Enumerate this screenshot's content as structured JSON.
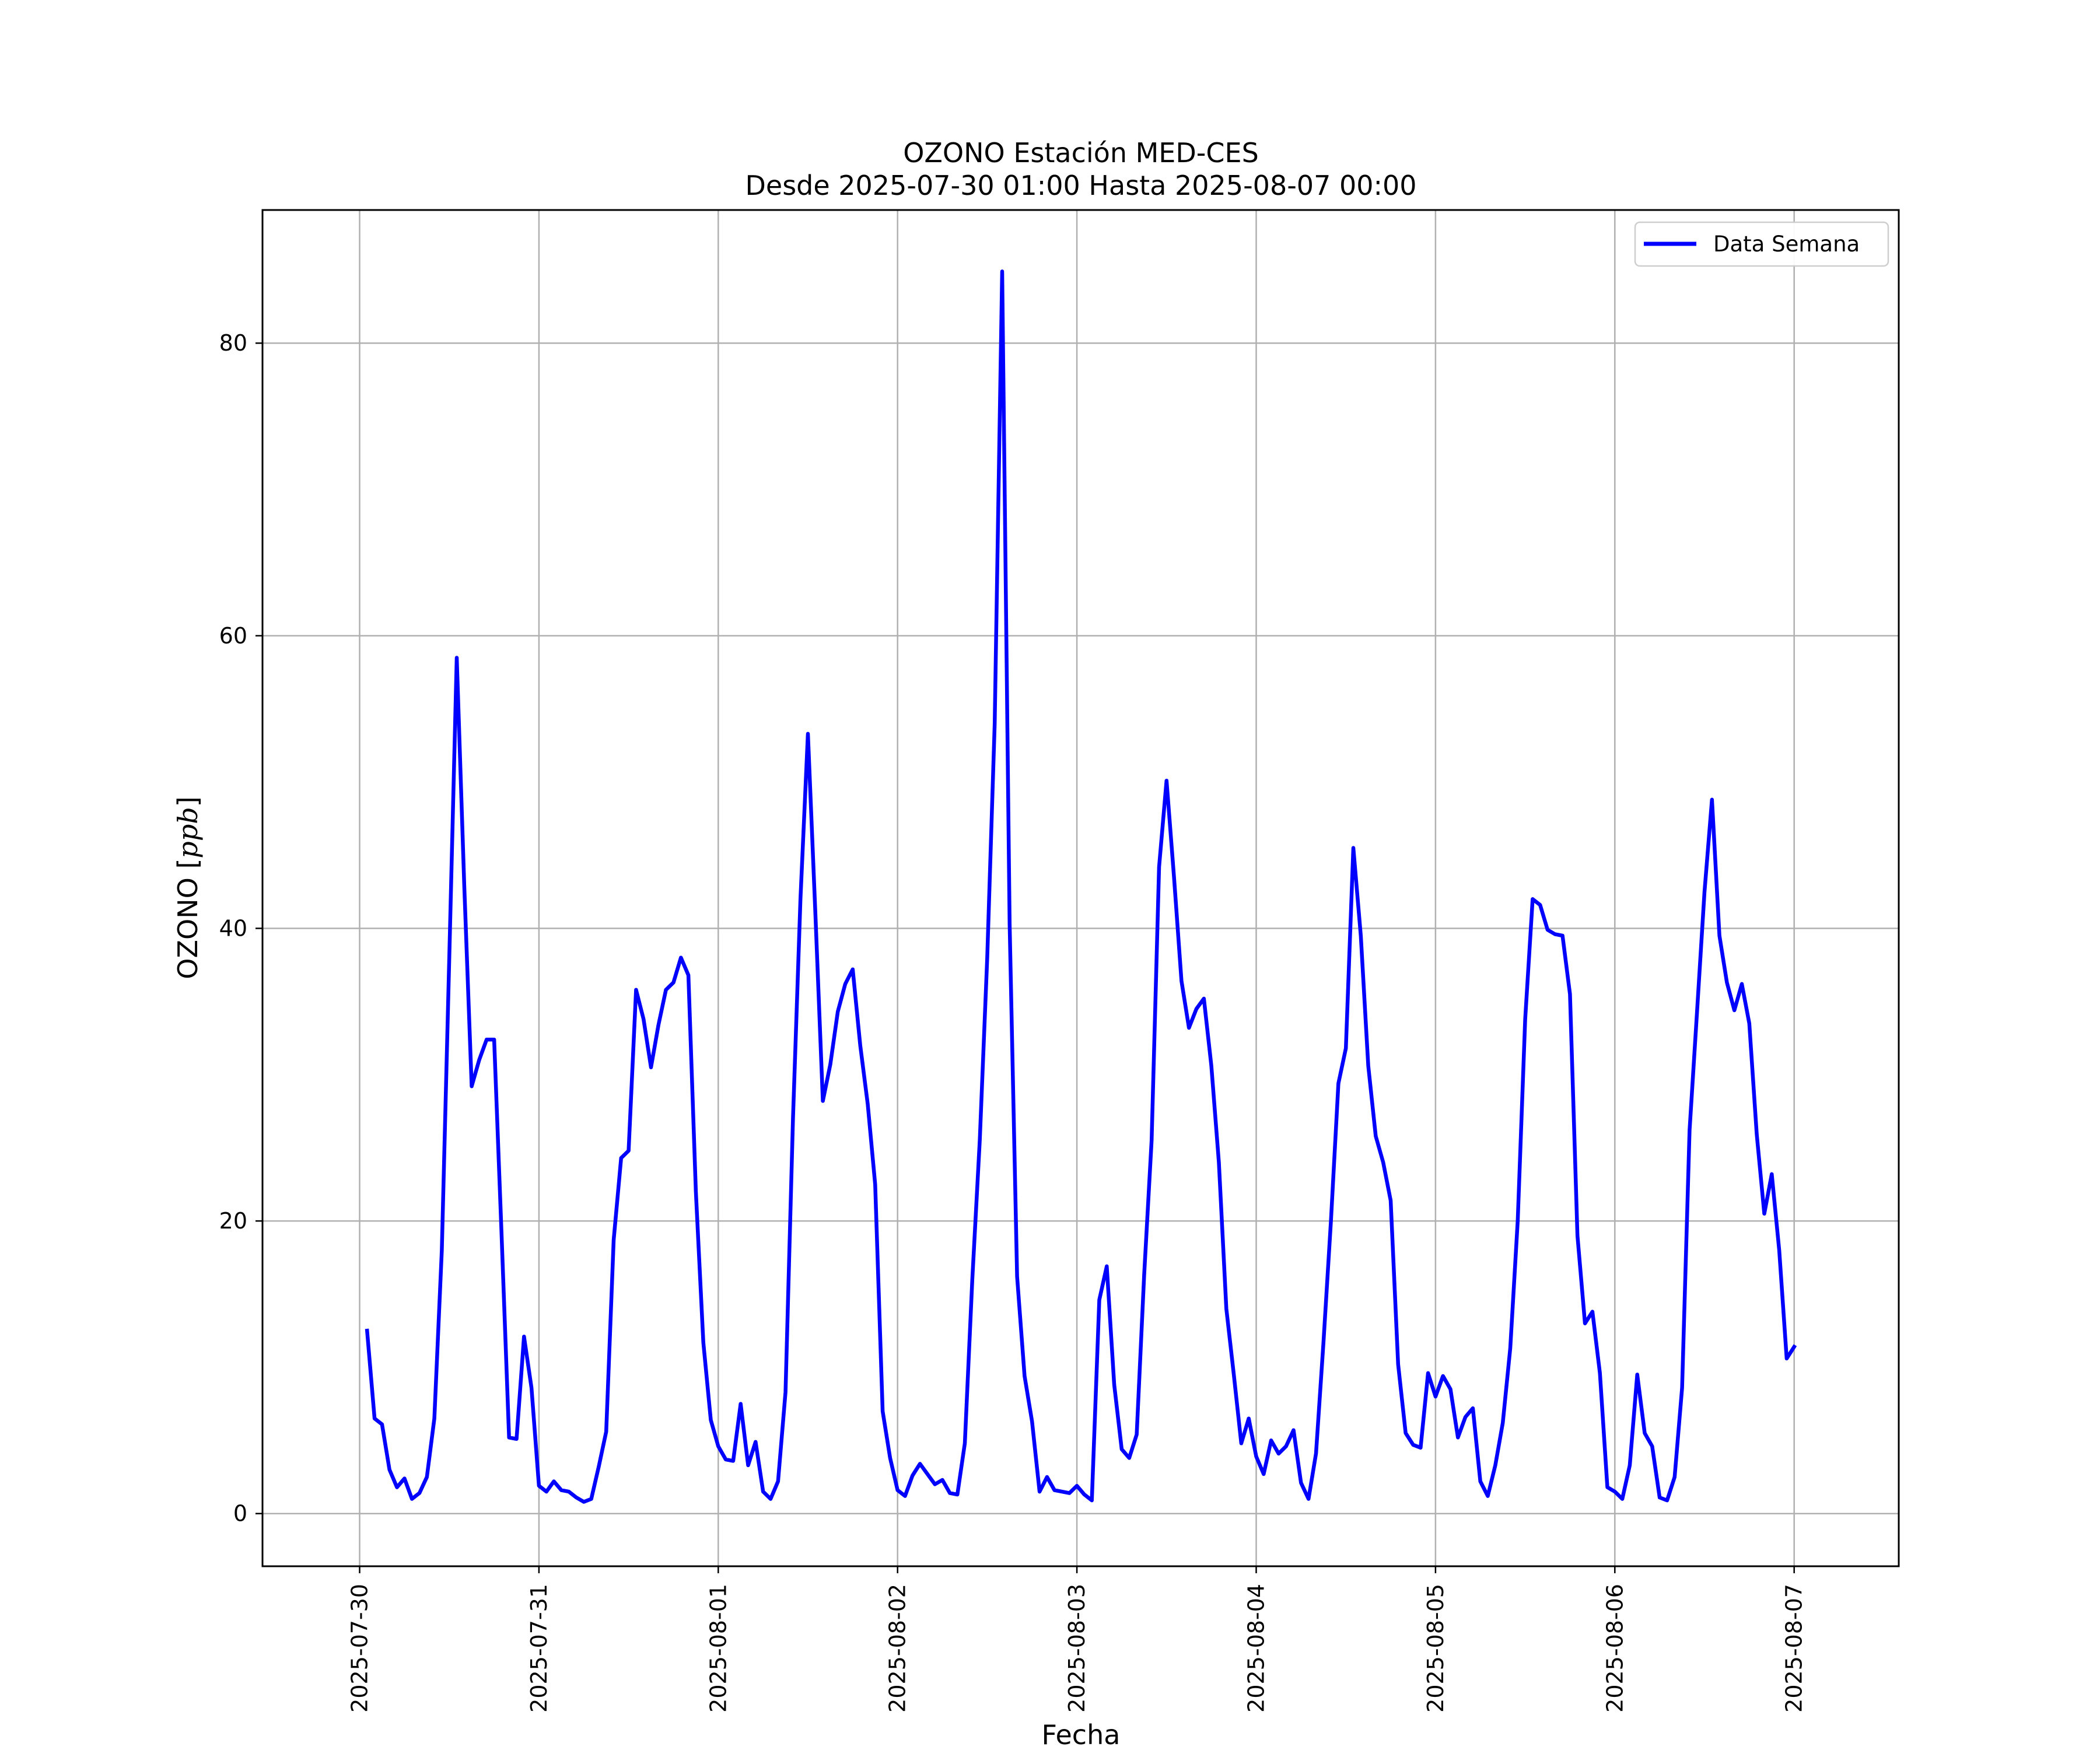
{
  "chart_data": {
    "type": "line",
    "title": "OZONO Estación MED-CES",
    "subtitle": "Desde 2025-07-30 01:00 Hasta 2025-08-07 00:00",
    "xlabel": "Fecha",
    "ylabel": "OZONO [ppb]",
    "ylabel_parts": {
      "prefix": "OZONO [",
      "unit": "ppb",
      "suffix": "]"
    },
    "x_type": "datetime",
    "xlim": [
      "2025-07-29 11:00",
      "2025-08-07 14:00"
    ],
    "ylim": [
      -3.6,
      89.1
    ],
    "xticks": [
      "2025-07-30",
      "2025-07-31",
      "2025-08-01",
      "2025-08-02",
      "2025-08-03",
      "2025-08-04",
      "2025-08-05",
      "2025-08-06",
      "2025-08-07"
    ],
    "yticks": [
      0,
      20,
      40,
      60,
      80
    ],
    "grid": true,
    "legend_position": "top-right",
    "series": [
      {
        "name": "Data Semana",
        "color": "#0000ff",
        "start": "2025-07-30 01:00",
        "step_hours": 1,
        "values": [
          12.5,
          6.5,
          6.1,
          3.0,
          1.8,
          2.4,
          1.0,
          1.4,
          2.5,
          6.5,
          18.0,
          38.0,
          58.5,
          43.0,
          29.2,
          31.0,
          32.4,
          32.4,
          19.0,
          5.2,
          5.1,
          12.1,
          8.6,
          1.9,
          1.5,
          2.2,
          1.6,
          1.5,
          1.1,
          0.8,
          1.0,
          3.2,
          5.6,
          18.7,
          24.3,
          24.8,
          35.8,
          33.8,
          30.5,
          33.4,
          35.8,
          36.3,
          38.0,
          36.8,
          22.0,
          11.7,
          6.4,
          4.6,
          3.7,
          3.6,
          7.5,
          3.3,
          4.9,
          1.5,
          1.0,
          2.2,
          8.3,
          27.0,
          42.0,
          53.3,
          41.0,
          28.2,
          30.7,
          34.3,
          36.2,
          37.2,
          32.0,
          28.0,
          22.5,
          7.0,
          3.8,
          1.6,
          1.2,
          2.6,
          3.4,
          2.7,
          2.0,
          2.3,
          1.4,
          1.3,
          4.8,
          16.0,
          25.5,
          38.0,
          54.0,
          84.9,
          40.3,
          16.2,
          9.4,
          6.3,
          1.5,
          2.5,
          1.6,
          1.5,
          1.4,
          1.9,
          1.3,
          0.9,
          14.6,
          16.9,
          8.8,
          4.4,
          3.8,
          5.4,
          16.3,
          25.5,
          44.2,
          50.1,
          43.5,
          36.4,
          33.2,
          34.5,
          35.2,
          30.6,
          24.0,
          14.0,
          9.5,
          4.8,
          6.5,
          3.9,
          2.7,
          5.0,
          4.1,
          4.6,
          5.7,
          2.1,
          1.0,
          4.1,
          11.7,
          20.0,
          29.4,
          31.8,
          45.5,
          39.5,
          30.6,
          25.8,
          24.0,
          21.4,
          10.2,
          5.5,
          4.7,
          4.5,
          9.6,
          8.0,
          9.4,
          8.5,
          5.2,
          6.6,
          7.2,
          2.2,
          1.2,
          3.3,
          6.2,
          11.3,
          20.0,
          33.8,
          42.0,
          41.6,
          39.9,
          39.6,
          39.5,
          35.5,
          19.0,
          13.0,
          13.8,
          9.6,
          1.8,
          1.5,
          1.0,
          3.3,
          9.5,
          5.5,
          4.6,
          1.1,
          0.9,
          2.5,
          8.6,
          26.2,
          34.3,
          42.5,
          48.8,
          39.5,
          36.3,
          34.4,
          36.2,
          33.5,
          25.9,
          20.5,
          23.2,
          18.0,
          10.6,
          11.4
        ]
      }
    ]
  }
}
